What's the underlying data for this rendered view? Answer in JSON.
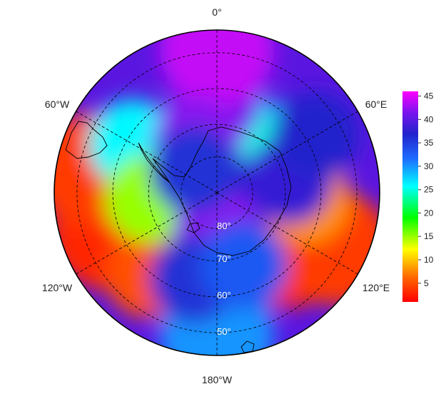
{
  "chart_data": {
    "type": "heatmap",
    "projection": "polar stereographic (south pole)",
    "title": "",
    "longitude_labels": {
      "top": "0°",
      "upper_left": "60°W",
      "upper_right": "60°E",
      "lower_left": "120°W",
      "lower_right": "120°E",
      "bottom": "180°W"
    },
    "latitude_labels": [
      "80°",
      "70°",
      "60°",
      "50°"
    ],
    "latitude_circles_deg": [
      80,
      70,
      60,
      50
    ],
    "colorbar": {
      "ticks": [
        "45",
        "40",
        "35",
        "30",
        "25",
        "20",
        "15",
        "10",
        "5"
      ],
      "range": [
        1,
        46
      ],
      "colormap": [
        "#ff0000",
        "#ff6a00",
        "#ffff00",
        "#00ff00",
        "#00ffff",
        "#1e6cff",
        "#2222cc",
        "#7a14ee",
        "#ff00ff"
      ]
    },
    "field_regions": [
      {
        "lon": -110,
        "r": 0.72,
        "value": 3
      },
      {
        "lon": -80,
        "r": 0.8,
        "value": 4
      },
      {
        "lon": -140,
        "r": 0.65,
        "value": 5
      },
      {
        "lon": -60,
        "r": 0.6,
        "value": 26
      },
      {
        "lon": -95,
        "r": 0.42,
        "value": 15
      },
      {
        "lon": -180,
        "r": 0.88,
        "value": 30
      },
      {
        "lon": 135,
        "r": 0.62,
        "value": 3
      },
      {
        "lon": 115,
        "r": 0.8,
        "value": 4
      },
      {
        "lon": 95,
        "r": 0.55,
        "value": 8
      },
      {
        "lon": 35,
        "r": 0.38,
        "value": 27
      },
      {
        "lon": 45,
        "r": 0.3,
        "value": 25
      },
      {
        "lon": 0,
        "r": 0.55,
        "value": 41
      },
      {
        "lon": 0,
        "r": 0.88,
        "value": 44
      },
      {
        "lon": -20,
        "r": 0.35,
        "value": 42
      },
      {
        "lon": 80,
        "r": 0.45,
        "value": 38
      },
      {
        "lon": 60,
        "r": 0.7,
        "value": 37
      },
      {
        "lon": 0,
        "r": 0.0,
        "value": 38
      },
      {
        "lon": 180,
        "r": 0.4,
        "value": 44
      },
      {
        "lon": 180,
        "r": 0.25,
        "value": 42
      },
      {
        "lon": -165,
        "r": 0.55,
        "value": 36
      },
      {
        "lon": 160,
        "r": 0.48,
        "value": 33
      },
      {
        "lon": -45,
        "r": 0.2,
        "value": 36
      }
    ]
  }
}
